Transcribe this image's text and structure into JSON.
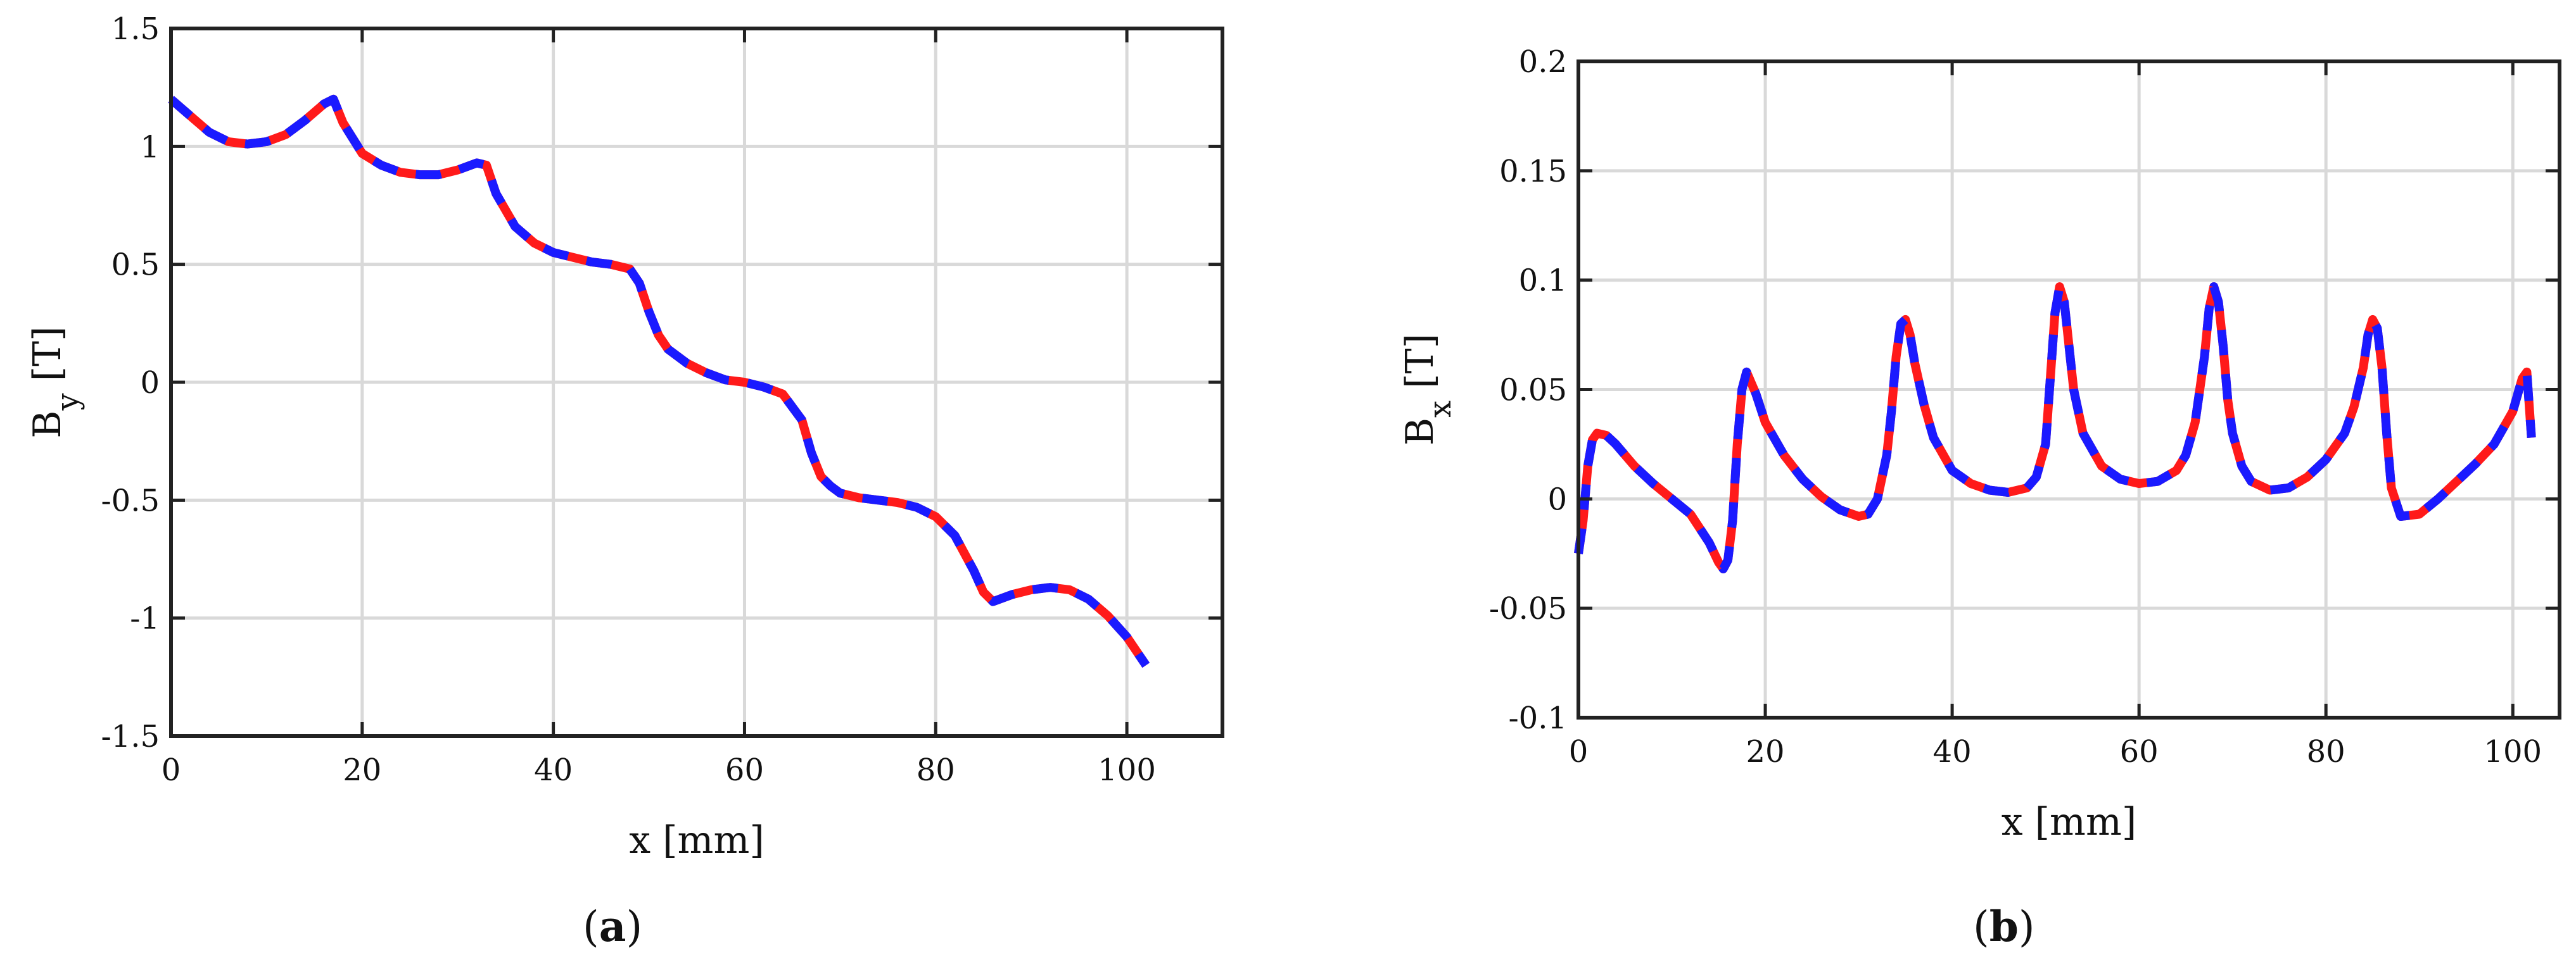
{
  "captions": [
    {
      "open": "(",
      "letter": "a",
      "close": ")"
    },
    {
      "open": "(",
      "letter": "b",
      "close": ")"
    }
  ],
  "colors": {
    "series_red": "#ff1a1a",
    "series_blue": "#1a1aff",
    "grid": "#d9d9d9",
    "axes": "#222222"
  },
  "chart_data": [
    {
      "type": "line",
      "panel": "a",
      "xlabel": "x [mm]",
      "ylabel": {
        "base": "B",
        "sub": "y",
        "unit": " [T]"
      },
      "xlim": [
        0,
        110
      ],
      "ylim": [
        -1.5,
        1.5
      ],
      "xticks": [
        0,
        20,
        40,
        60,
        80,
        100
      ],
      "xticklabels": [
        "0",
        "20",
        "40",
        "60",
        "80",
        "100"
      ],
      "yticks": [
        -1.5,
        -1,
        -0.5,
        0,
        0.5,
        1,
        1.5
      ],
      "yticklabels": [
        "-1.5",
        "-1",
        "-0.5",
        "0",
        "0.5",
        "1",
        "1.5"
      ],
      "grid": true,
      "line_style": "red solid overlaid by blue dashed",
      "series": [
        {
          "color": "#ff1a1a",
          "dash": "solid",
          "x": [
            0,
            2,
            4,
            6,
            8,
            10,
            12,
            14,
            16,
            17,
            18,
            20,
            22,
            24,
            26,
            28,
            30,
            32,
            33,
            34,
            36,
            38,
            40,
            42,
            44,
            46,
            48,
            49,
            50,
            51,
            52,
            54,
            56,
            58,
            60,
            62,
            64,
            66,
            67,
            68,
            69,
            70,
            72,
            74,
            76,
            78,
            80,
            82,
            84,
            85,
            86,
            88,
            90,
            92,
            94,
            96,
            98,
            100,
            102
          ],
          "y": [
            1.2,
            1.13,
            1.06,
            1.02,
            1.01,
            1.02,
            1.05,
            1.11,
            1.18,
            1.2,
            1.1,
            0.97,
            0.92,
            0.89,
            0.88,
            0.88,
            0.9,
            0.93,
            0.92,
            0.8,
            0.66,
            0.59,
            0.55,
            0.53,
            0.51,
            0.5,
            0.48,
            0.42,
            0.3,
            0.2,
            0.14,
            0.08,
            0.04,
            0.01,
            0.0,
            -0.02,
            -0.05,
            -0.16,
            -0.3,
            -0.4,
            -0.44,
            -0.47,
            -0.49,
            -0.5,
            -0.51,
            -0.53,
            -0.57,
            -0.65,
            -0.8,
            -0.89,
            -0.93,
            -0.9,
            -0.88,
            -0.87,
            -0.88,
            -0.92,
            -0.99,
            -1.08,
            -1.2
          ]
        },
        {
          "color": "#1a1aff",
          "dash": "dashed",
          "x": [
            0,
            2,
            4,
            6,
            8,
            10,
            12,
            14,
            16,
            17,
            18,
            20,
            22,
            24,
            26,
            28,
            30,
            32,
            33,
            34,
            36,
            38,
            40,
            42,
            44,
            46,
            48,
            49,
            50,
            51,
            52,
            54,
            56,
            58,
            60,
            62,
            64,
            66,
            67,
            68,
            69,
            70,
            72,
            74,
            76,
            78,
            80,
            82,
            84,
            85,
            86,
            88,
            90,
            92,
            94,
            96,
            98,
            100,
            102
          ],
          "y": [
            1.2,
            1.13,
            1.06,
            1.02,
            1.01,
            1.02,
            1.05,
            1.11,
            1.18,
            1.2,
            1.1,
            0.97,
            0.92,
            0.89,
            0.88,
            0.88,
            0.9,
            0.93,
            0.92,
            0.8,
            0.66,
            0.59,
            0.55,
            0.53,
            0.51,
            0.5,
            0.48,
            0.42,
            0.3,
            0.2,
            0.14,
            0.08,
            0.04,
            0.01,
            0.0,
            -0.02,
            -0.05,
            -0.16,
            -0.3,
            -0.4,
            -0.44,
            -0.47,
            -0.49,
            -0.5,
            -0.51,
            -0.53,
            -0.57,
            -0.65,
            -0.8,
            -0.89,
            -0.93,
            -0.9,
            -0.88,
            -0.87,
            -0.88,
            -0.92,
            -0.99,
            -1.08,
            -1.2
          ]
        }
      ]
    },
    {
      "type": "line",
      "panel": "b",
      "xlabel": "x [mm]",
      "ylabel": {
        "base": "B",
        "sub": "x",
        "unit": " [T]"
      },
      "xlim": [
        0,
        105
      ],
      "ylim": [
        -0.1,
        0.2
      ],
      "xticks": [
        0,
        20,
        40,
        60,
        80,
        100
      ],
      "xticklabels": [
        "0",
        "20",
        "40",
        "60",
        "80",
        "100"
      ],
      "yticks": [
        -0.1,
        -0.05,
        0,
        0.05,
        0.1,
        0.15,
        0.2
      ],
      "yticklabels": [
        "-0.1",
        "-0.05",
        "0",
        "0.05",
        "0.1",
        "0.15",
        "0.2"
      ],
      "grid": true,
      "line_style": "red solid overlaid by blue dashed",
      "series": [
        {
          "color": "#ff1a1a",
          "dash": "solid",
          "x": [
            0,
            0.5,
            1,
            1.5,
            2,
            3,
            4,
            6,
            8,
            10,
            12,
            14,
            15,
            15.5,
            16,
            16.5,
            17,
            17.5,
            18,
            19,
            20,
            22,
            24,
            26,
            28,
            30,
            31,
            32,
            33,
            33.5,
            34,
            34.5,
            35,
            35.5,
            36,
            37,
            38,
            40,
            42,
            44,
            46,
            48,
            49,
            50,
            50.5,
            51,
            51.5,
            52,
            52.5,
            53,
            54,
            56,
            58,
            60,
            62,
            64,
            65,
            66,
            67,
            67.5,
            68,
            68.5,
            69,
            69.5,
            70,
            71,
            72,
            74,
            76,
            78,
            80,
            82,
            83,
            84,
            84.5,
            85,
            85.5,
            86,
            86.5,
            87,
            88,
            90,
            92,
            94,
            96,
            98,
            100,
            101,
            101.5,
            102
          ],
          "y": [
            -0.025,
            -0.01,
            0.015,
            0.027,
            0.03,
            0.029,
            0.025,
            0.015,
            0.007,
            0.0,
            -0.007,
            -0.02,
            -0.029,
            -0.032,
            -0.028,
            -0.01,
            0.025,
            0.05,
            0.058,
            0.048,
            0.035,
            0.02,
            0.009,
            0.001,
            -0.005,
            -0.008,
            -0.007,
            0.0,
            0.02,
            0.04,
            0.065,
            0.08,
            0.082,
            0.075,
            0.062,
            0.043,
            0.028,
            0.013,
            0.007,
            0.004,
            0.003,
            0.005,
            0.01,
            0.025,
            0.055,
            0.085,
            0.097,
            0.09,
            0.07,
            0.05,
            0.03,
            0.015,
            0.009,
            0.007,
            0.008,
            0.013,
            0.02,
            0.035,
            0.065,
            0.087,
            0.097,
            0.09,
            0.07,
            0.045,
            0.03,
            0.015,
            0.008,
            0.004,
            0.005,
            0.01,
            0.018,
            0.03,
            0.042,
            0.06,
            0.075,
            0.082,
            0.078,
            0.06,
            0.03,
            0.005,
            -0.008,
            -0.007,
            0.0,
            0.008,
            0.016,
            0.025,
            0.04,
            0.055,
            0.058,
            0.028
          ]
        },
        {
          "color": "#1a1aff",
          "dash": "dashed",
          "x": [
            0,
            0.5,
            1,
            1.5,
            2,
            3,
            4,
            6,
            8,
            10,
            12,
            14,
            15,
            15.5,
            16,
            16.5,
            17,
            17.5,
            18,
            19,
            20,
            22,
            24,
            26,
            28,
            30,
            31,
            32,
            33,
            33.5,
            34,
            34.5,
            35,
            35.5,
            36,
            37,
            38,
            40,
            42,
            44,
            46,
            48,
            49,
            50,
            50.5,
            51,
            51.5,
            52,
            52.5,
            53,
            54,
            56,
            58,
            60,
            62,
            64,
            65,
            66,
            67,
            67.5,
            68,
            68.5,
            69,
            69.5,
            70,
            71,
            72,
            74,
            76,
            78,
            80,
            82,
            83,
            84,
            84.5,
            85,
            85.5,
            86,
            86.5,
            87,
            88,
            90,
            92,
            94,
            96,
            98,
            100,
            101,
            101.5,
            102
          ],
          "y": [
            -0.025,
            -0.01,
            0.015,
            0.027,
            0.03,
            0.029,
            0.025,
            0.015,
            0.007,
            0.0,
            -0.007,
            -0.02,
            -0.029,
            -0.032,
            -0.028,
            -0.01,
            0.025,
            0.05,
            0.058,
            0.048,
            0.035,
            0.02,
            0.009,
            0.001,
            -0.005,
            -0.008,
            -0.007,
            0.0,
            0.02,
            0.04,
            0.065,
            0.08,
            0.082,
            0.075,
            0.062,
            0.043,
            0.028,
            0.013,
            0.007,
            0.004,
            0.003,
            0.005,
            0.01,
            0.025,
            0.055,
            0.085,
            0.097,
            0.09,
            0.07,
            0.05,
            0.03,
            0.015,
            0.009,
            0.007,
            0.008,
            0.013,
            0.02,
            0.035,
            0.065,
            0.087,
            0.097,
            0.09,
            0.07,
            0.045,
            0.03,
            0.015,
            0.008,
            0.004,
            0.005,
            0.01,
            0.018,
            0.03,
            0.042,
            0.06,
            0.075,
            0.082,
            0.078,
            0.06,
            0.03,
            0.005,
            -0.008,
            -0.007,
            0.0,
            0.008,
            0.016,
            0.025,
            0.04,
            0.055,
            0.058,
            0.028
          ]
        }
      ]
    }
  ]
}
